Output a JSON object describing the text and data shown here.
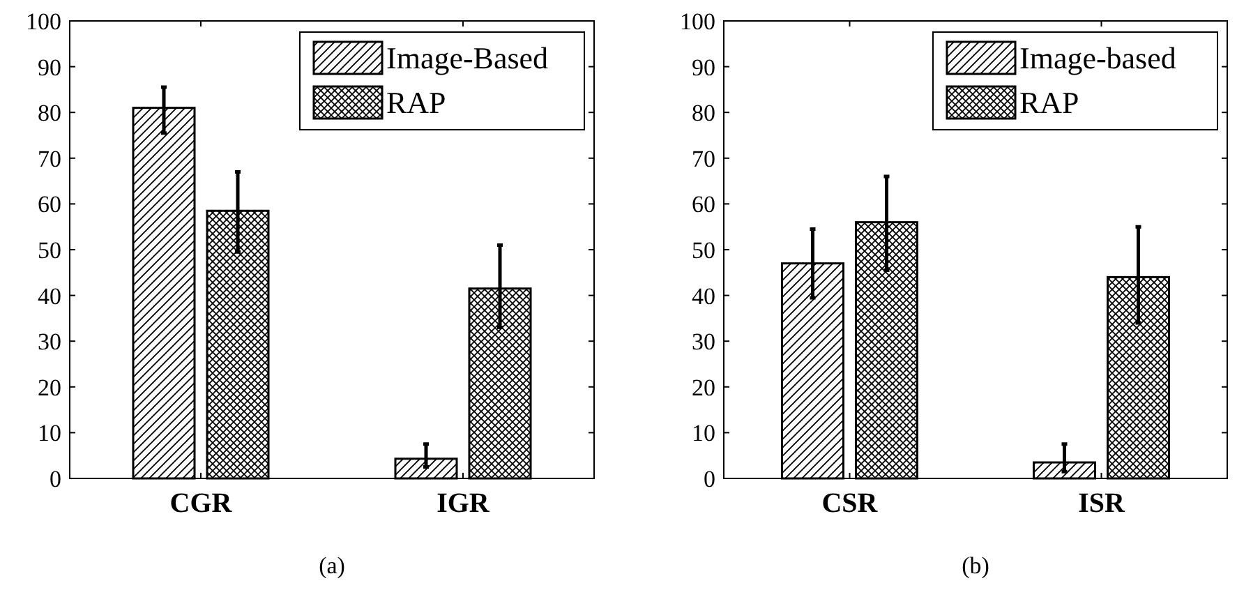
{
  "chart_data": [
    {
      "type": "bar",
      "categories": [
        "CGR",
        "IGR"
      ],
      "series": [
        {
          "name": "Image-Based",
          "color": "#000000",
          "values": [
            81,
            4.3
          ],
          "errors": [
            [
              75.5,
              85.5
            ],
            [
              2.5,
              7.5
            ]
          ]
        },
        {
          "name": "RAP",
          "color": "#000000",
          "values": [
            58.5,
            41.5
          ],
          "errors": [
            [
              49.5,
              67
            ],
            [
              33,
              51
            ]
          ]
        }
      ],
      "ylim": [
        0,
        100
      ],
      "yticks": [
        0,
        10,
        20,
        30,
        40,
        50,
        60,
        70,
        80,
        90,
        100
      ],
      "grid": false,
      "legend": "top right",
      "annotations": [
        "(a)"
      ]
    },
    {
      "type": "bar",
      "categories": [
        "CSR",
        "ISR"
      ],
      "series": [
        {
          "name": "Image-based",
          "color": "#000000",
          "values": [
            47,
            3.5
          ],
          "errors": [
            [
              39.5,
              54.5
            ],
            [
              1.5,
              7.5
            ]
          ]
        },
        {
          "name": "RAP",
          "color": "#000000",
          "values": [
            56,
            44
          ],
          "errors": [
            [
              45.5,
              66
            ],
            [
              34,
              55
            ]
          ]
        }
      ],
      "ylim": [
        0,
        100
      ],
      "yticks": [
        0,
        10,
        20,
        30,
        40,
        50,
        60,
        70,
        80,
        90,
        100
      ],
      "grid": false,
      "legend": "top right",
      "annotations": [
        "(b)"
      ]
    }
  ]
}
